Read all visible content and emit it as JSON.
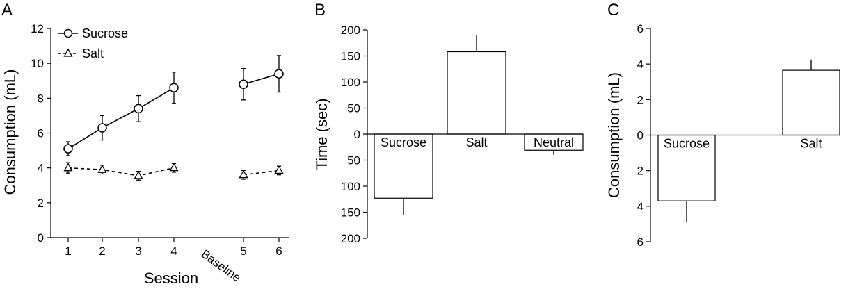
{
  "chart_data": [
    {
      "panel": "A",
      "type": "line",
      "xlabel": "Session",
      "ylabel": "Consumption (mL)",
      "ylim": [
        0,
        12
      ],
      "yticks": [
        "0",
        "2",
        "4",
        "6",
        "8",
        "10",
        "12"
      ],
      "x_categories": [
        "1",
        "2",
        "3",
        "4",
        "Baseline",
        "5",
        "6"
      ],
      "legend": [
        "Sucrose",
        "Salt"
      ],
      "legend_position": "top-left",
      "series": [
        {
          "name": "Sucrose",
          "marker": "circle",
          "line": "solid",
          "segments": [
            {
              "x": [
                "1",
                "2",
                "3",
                "4"
              ],
              "y": [
                5.1,
                6.3,
                7.4,
                8.6
              ],
              "err": [
                0.4,
                0.7,
                0.75,
                0.9
              ]
            },
            {
              "x": [
                "5",
                "6"
              ],
              "y": [
                8.8,
                9.4
              ],
              "err": [
                0.9,
                1.05
              ]
            }
          ]
        },
        {
          "name": "Salt",
          "marker": "triangle",
          "line": "dashed",
          "segments": [
            {
              "x": [
                "1",
                "2",
                "3",
                "4"
              ],
              "y": [
                4.0,
                3.9,
                3.55,
                4.0
              ],
              "err": [
                0.3,
                0.25,
                0.25,
                0.25
              ]
            },
            {
              "x": [
                "5",
                "6"
              ],
              "y": [
                3.6,
                3.85
              ],
              "err": [
                0.25,
                0.25
              ]
            }
          ]
        }
      ]
    },
    {
      "panel": "B",
      "type": "bar",
      "ylabel": "Time (sec)",
      "ylim": [
        -200,
        200
      ],
      "yticks": [
        "200",
        "150",
        "100",
        "50",
        "0",
        "50",
        "100",
        "150",
        "200"
      ],
      "categories": [
        "Sucrose",
        "Salt",
        "Neutral"
      ],
      "values": [
        -123,
        158,
        -31
      ],
      "errors": [
        33,
        32,
        9
      ]
    },
    {
      "panel": "C",
      "type": "bar",
      "ylabel": "Consumption (mL)",
      "ylim": [
        -6,
        6
      ],
      "yticks": [
        "6",
        "4",
        "2",
        "0",
        "2",
        "4",
        "6"
      ],
      "categories": [
        "Sucrose",
        "Salt"
      ],
      "values": [
        -3.7,
        3.65
      ],
      "errors": [
        1.2,
        0.6
      ]
    }
  ]
}
